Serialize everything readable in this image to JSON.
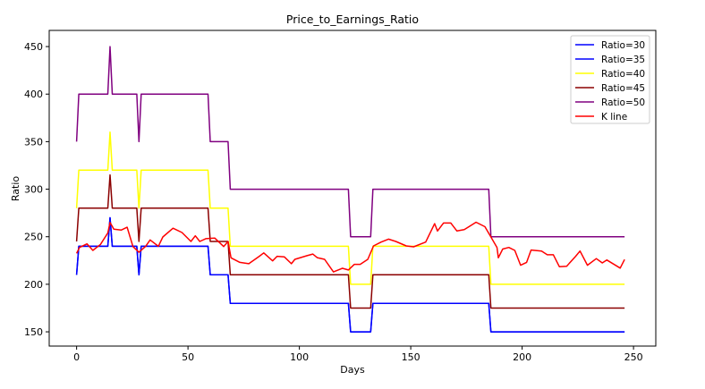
{
  "chart_data": {
    "type": "line",
    "title": "Price_to_Earnings_Ratio",
    "xlabel": "Days",
    "ylabel": "Ratio",
    "xlim": [
      -12.3,
      260
    ],
    "ylim": [
      135,
      467
    ],
    "xticks": [
      0,
      50,
      100,
      150,
      200,
      250
    ],
    "yticks": [
      150,
      200,
      250,
      300,
      350,
      400,
      450
    ],
    "grid": false,
    "legend_position": "top-right",
    "series": [
      {
        "name": "Ratio=30",
        "color": "#0000ff",
        "x": [
          0,
          1,
          14,
          15,
          16,
          27,
          28,
          29,
          59,
          60,
          68,
          69,
          122,
          123,
          132,
          133,
          185,
          186,
          246
        ],
        "y": [
          210,
          240,
          240,
          270,
          240,
          240,
          210,
          240,
          240,
          210,
          210,
          180,
          180,
          150,
          150,
          180,
          180,
          150,
          150
        ]
      },
      {
        "name": "Ratio=35",
        "color": "#0000ff",
        "x": [
          0,
          1,
          14,
          15,
          16,
          27,
          28,
          29,
          59,
          60,
          68,
          69,
          122,
          123,
          132,
          133,
          185,
          186,
          246
        ],
        "y": [
          210,
          240,
          240,
          270,
          240,
          240,
          210,
          240,
          240,
          210,
          210,
          180,
          180,
          150,
          150,
          180,
          180,
          150,
          150
        ]
      },
      {
        "name": "Ratio=40",
        "color": "#ffff00",
        "x": [
          0,
          1,
          14,
          15,
          16,
          27,
          28,
          29,
          59,
          60,
          68,
          69,
          122,
          123,
          132,
          133,
          185,
          186,
          246
        ],
        "y": [
          280,
          320,
          320,
          360,
          320,
          320,
          280,
          320,
          320,
          280,
          280,
          240,
          240,
          200,
          200,
          240,
          240,
          200,
          200
        ]
      },
      {
        "name": "Ratio=45",
        "color": "#8b0000",
        "x": [
          0,
          1,
          14,
          15,
          16,
          27,
          28,
          29,
          59,
          60,
          68,
          69,
          122,
          123,
          132,
          133,
          185,
          186,
          246
        ],
        "y": [
          245,
          280,
          280,
          315,
          280,
          280,
          245,
          280,
          280,
          245,
          245,
          210,
          210,
          175,
          175,
          210,
          210,
          175,
          175
        ]
      },
      {
        "name": "Ratio=50",
        "color": "#800080",
        "x": [
          0,
          1,
          14,
          15,
          16,
          27,
          28,
          29,
          59,
          60,
          68,
          69,
          122,
          123,
          132,
          133,
          185,
          186,
          246
        ],
        "y": [
          350,
          400,
          400,
          450,
          400,
          400,
          350,
          400,
          400,
          350,
          350,
          300,
          300,
          250,
          250,
          300,
          300,
          250,
          250
        ]
      },
      {
        "name": "K line",
        "color": "#ff0000",
        "x": [
          0,
          1.3,
          4.7,
          7.3,
          10.7,
          14,
          15,
          16.7,
          20,
          22.7,
          25.3,
          28,
          31,
          33,
          36.7,
          38.7,
          43.3,
          47.3,
          51.3,
          53.3,
          55.3,
          58,
          62,
          66,
          68,
          69.3,
          73.3,
          77.3,
          82,
          84,
          88,
          90,
          93.3,
          96.4,
          98,
          103.3,
          106,
          108,
          111.3,
          115.3,
          119.3,
          122,
          124.7,
          127.3,
          130.7,
          133.3,
          136.7,
          140,
          143.3,
          148,
          151.3,
          156.7,
          160.7,
          162,
          164.7,
          168,
          170.7,
          174,
          179.3,
          183.3,
          186,
          188.7,
          189.3,
          191.3,
          194,
          196.7,
          199.3,
          202,
          204,
          208.7,
          211.3,
          214,
          216.7,
          220,
          224,
          226,
          229.3,
          233.3,
          236,
          238,
          244,
          246
        ],
        "y": [
          232.5,
          238.7,
          242.5,
          235.6,
          241.9,
          254,
          265,
          258,
          257,
          260,
          239.7,
          233.7,
          240,
          246.6,
          240,
          249.7,
          259,
          254.4,
          245,
          251,
          245,
          248,
          248.6,
          239.7,
          245,
          227.8,
          223,
          221.6,
          229.4,
          233,
          224.6,
          229.4,
          228.8,
          221.6,
          226.2,
          230,
          231.8,
          228,
          226.2,
          213,
          216.8,
          215,
          221,
          221,
          226.2,
          240.3,
          244.4,
          247.5,
          245,
          240.3,
          239.4,
          244.4,
          263.8,
          256,
          264.4,
          264.4,
          256,
          257.5,
          265.3,
          260.6,
          249.7,
          238.7,
          227.8,
          237,
          238.7,
          235.6,
          220,
          223,
          236,
          235,
          231,
          231,
          218.5,
          219,
          229.4,
          235,
          220,
          227,
          222.5,
          225.6,
          217,
          226
        ]
      }
    ]
  }
}
